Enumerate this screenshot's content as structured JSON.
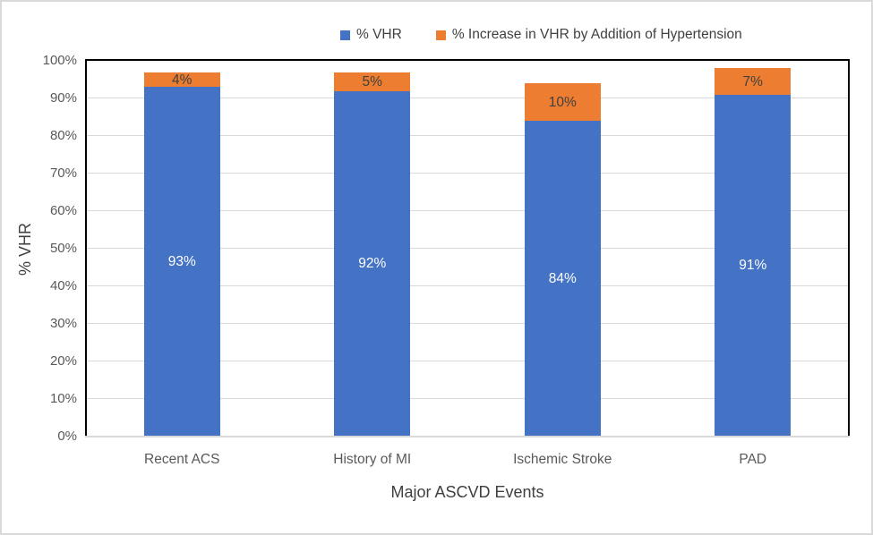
{
  "figure": {
    "background": "#ffffff",
    "border_color": "#d9d9d9",
    "plot_border_color": "#000000",
    "gridline_color": "#d9d9d9",
    "axis_text_color": "#595959"
  },
  "legend": {
    "items": [
      {
        "label": "% VHR",
        "color": "#4472C4"
      },
      {
        "label": "% Increase in VHR by Addition of Hypertension",
        "color": "#ED7D31"
      }
    ]
  },
  "chart_data": {
    "type": "bar",
    "stacked": true,
    "title": "",
    "xlabel": "Major ASCVD Events",
    "ylabel": "% VHR",
    "categories": [
      "Recent ACS",
      "History of MI",
      "Ischemic Stroke",
      "PAD"
    ],
    "series": [
      {
        "name": "% VHR",
        "color": "#4472C4",
        "values": [
          93,
          92,
          84,
          91
        ],
        "data_labels": [
          "93%",
          "92%",
          "84%",
          "91%"
        ],
        "label_color": "#ffffff"
      },
      {
        "name": "% Increase in VHR by Addition of Hypertension",
        "color": "#ED7D31",
        "values": [
          4,
          5,
          10,
          7
        ],
        "data_labels": [
          "4%",
          "5%",
          "10%",
          "7%"
        ],
        "label_color": "#404040"
      }
    ],
    "ylim": [
      0,
      100
    ],
    "ytick_step": 10,
    "yticks": [
      "0%",
      "10%",
      "20%",
      "30%",
      "40%",
      "50%",
      "60%",
      "70%",
      "80%",
      "90%",
      "100%"
    ],
    "grid": true,
    "legend_position": "top"
  }
}
